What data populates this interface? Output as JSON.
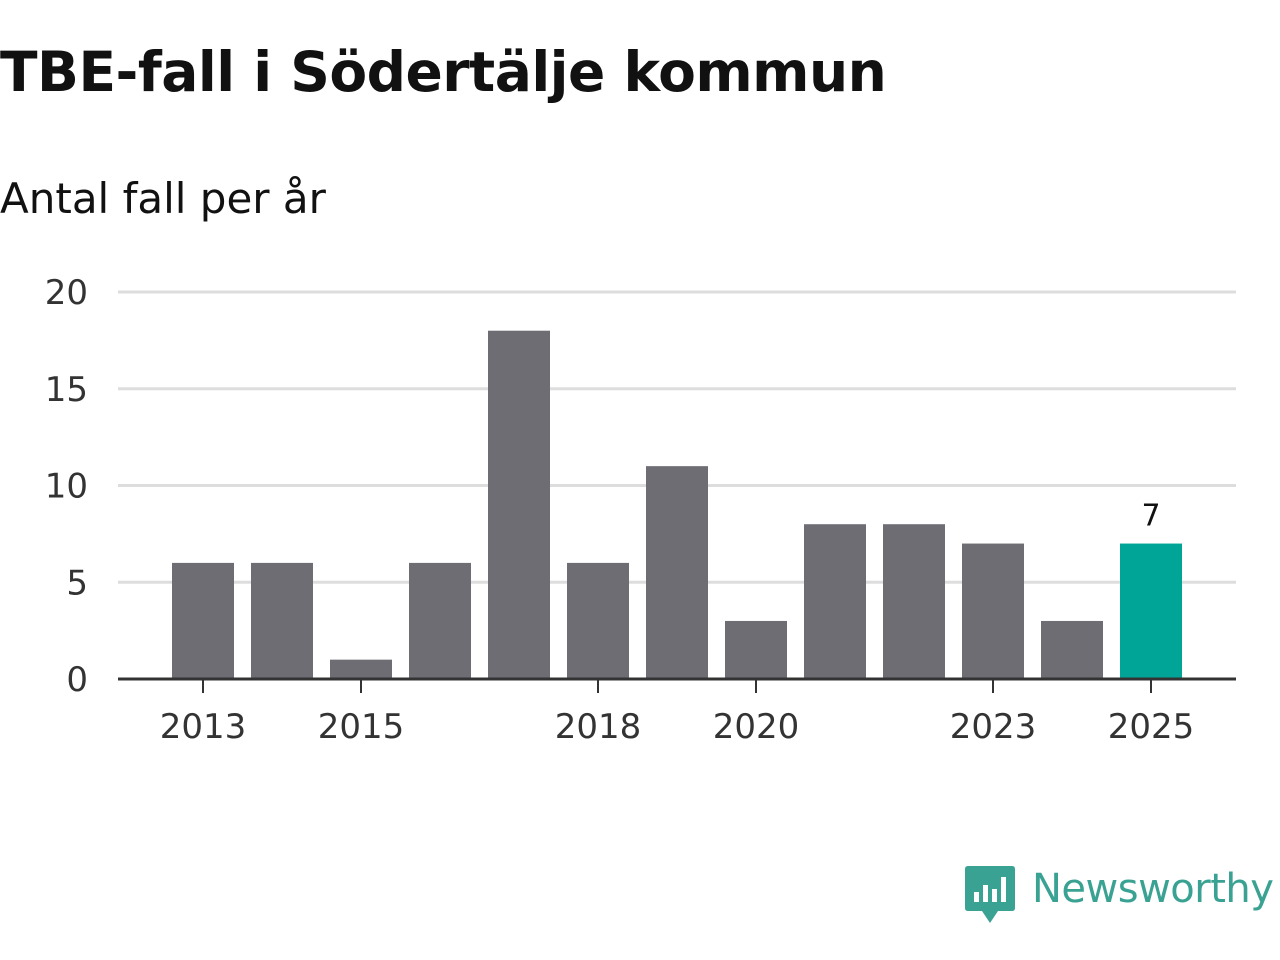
{
  "title": "TBE-fall i Södertälje kommun",
  "subtitle": "Antal fall per år",
  "brand": {
    "name": "Newsworthy",
    "icon": "newsworthy-logo-icon",
    "color": "#3aa293"
  },
  "colors": {
    "bar": "#6e6d74",
    "highlight": "#00a597",
    "grid": "#dddddd",
    "axis": "#333333"
  },
  "chart_data": {
    "type": "bar",
    "title": "TBE-fall i Södertälje kommun",
    "subtitle": "Antal fall per år",
    "xlabel": "",
    "ylabel": "",
    "categories": [
      "2013",
      "2014",
      "2015",
      "2016",
      "2017",
      "2018",
      "2019",
      "2020",
      "2021",
      "2022",
      "2023",
      "2024",
      "2025"
    ],
    "values": [
      6,
      6,
      1,
      6,
      18,
      6,
      11,
      3,
      8,
      8,
      7,
      3,
      7
    ],
    "highlight_index": 12,
    "highlight_label": "7",
    "ylim": [
      0,
      20
    ],
    "yticks": [
      0,
      5,
      10,
      15,
      20
    ],
    "xticks": [
      "2013",
      "2015",
      "2018",
      "2020",
      "2023",
      "2025"
    ],
    "grid": true
  }
}
